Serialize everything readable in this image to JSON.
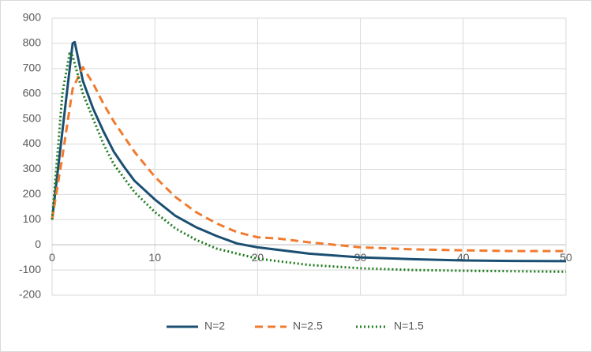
{
  "chart_data": {
    "type": "line",
    "xlim": [
      0,
      50
    ],
    "xticks": [
      0,
      10,
      20,
      30,
      40,
      50
    ],
    "ylim": [
      -200,
      900
    ],
    "yticks": [
      -200,
      -100,
      0,
      100,
      200,
      300,
      400,
      500,
      600,
      700,
      800,
      900
    ],
    "grid": true,
    "legend": "bottom",
    "series": [
      {
        "name": "N=2",
        "color": "#1b4f72",
        "dash": "solid",
        "x": [
          0,
          1,
          2,
          2.2,
          3,
          4,
          5,
          6,
          7,
          8,
          10,
          12,
          14,
          16,
          18,
          20,
          25,
          30,
          35,
          40,
          45,
          50
        ],
        "values": [
          100,
          450,
          800,
          805,
          650,
          540,
          450,
          370,
          310,
          255,
          180,
          115,
          70,
          35,
          5,
          -10,
          -35,
          -50,
          -57,
          -62,
          -64,
          -65
        ]
      },
      {
        "name": "N=2.5",
        "color": "#f07b2f",
        "dash": "dashed",
        "x": [
          0,
          1,
          2,
          3,
          4,
          5,
          6,
          8,
          10,
          12,
          14,
          16,
          18,
          20,
          22,
          25,
          30,
          35,
          40,
          45,
          50
        ],
        "values": [
          100,
          350,
          620,
          705,
          640,
          560,
          490,
          370,
          270,
          190,
          130,
          85,
          50,
          30,
          25,
          10,
          -10,
          -18,
          -22,
          -25,
          -25
        ]
      },
      {
        "name": "N=1.5",
        "color": "#1e7b1e",
        "dash": "dotted",
        "x": [
          0,
          1,
          1.7,
          2,
          3,
          4,
          5,
          6,
          8,
          10,
          12,
          14,
          16,
          18,
          20,
          25,
          30,
          35,
          40,
          45,
          50
        ],
        "values": [
          100,
          600,
          760,
          750,
          600,
          500,
          400,
          320,
          210,
          130,
          65,
          20,
          -15,
          -35,
          -55,
          -80,
          -93,
          -100,
          -103,
          -105,
          -107
        ]
      }
    ]
  }
}
